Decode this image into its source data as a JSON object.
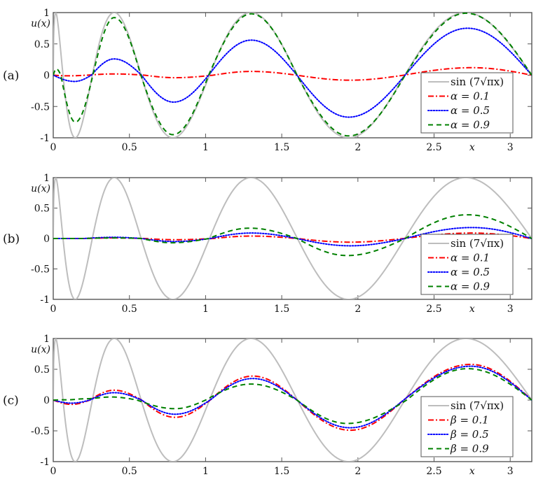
{
  "chart_data": [
    {
      "type": "line",
      "panel_label": "(a)",
      "xlabel": "x",
      "ylabel": "u(x)",
      "xlim": [
        0,
        3.1416
      ],
      "ylim": [
        -1,
        1
      ],
      "xticks": [
        "0",
        "0.5",
        "1",
        "1.5",
        "2",
        "2.5",
        "3"
      ],
      "yticks": [
        "-1",
        "-0.5",
        "0",
        "0.5",
        "1"
      ],
      "legend_position": "bottom-right",
      "reference": {
        "name": "sin (7√πx)",
        "expression": "sin(7*sqrt(pi*x))",
        "color": "#bdbdbd"
      },
      "series": [
        {
          "name": "α = 0.1",
          "color": "#ff0000",
          "style": "dashdot",
          "points": [
            [
              0,
              0
            ],
            [
              0.1,
              -0.01
            ],
            [
              0.22,
              0
            ],
            [
              0.4,
              0.02
            ],
            [
              0.6,
              0
            ],
            [
              0.8,
              -0.04
            ],
            [
              1.05,
              0
            ],
            [
              1.3,
              0.06
            ],
            [
              1.6,
              0
            ],
            [
              1.95,
              -0.08
            ],
            [
              2.3,
              0
            ],
            [
              2.75,
              0.12
            ],
            [
              3.1416,
              0
            ]
          ]
        },
        {
          "name": "α = 0.5",
          "color": "#0000ff",
          "style": "dotted",
          "points": [
            [
              0,
              0
            ],
            [
              0.14,
              -0.1
            ],
            [
              0.25,
              0
            ],
            [
              0.4,
              0.26
            ],
            [
              0.58,
              0
            ],
            [
              0.79,
              -0.43
            ],
            [
              1.02,
              0
            ],
            [
              1.3,
              0.56
            ],
            [
              1.6,
              0
            ],
            [
              1.94,
              -0.67
            ],
            [
              2.31,
              0
            ],
            [
              2.72,
              0.75
            ],
            [
              3.1416,
              0
            ]
          ]
        },
        {
          "name": "α = 0.9",
          "color": "#008000",
          "style": "dashed",
          "points": [
            [
              0,
              0
            ],
            [
              0.02,
              0.1
            ],
            [
              0.05,
              0
            ],
            [
              0.145,
              -0.75
            ],
            [
              0.26,
              0
            ],
            [
              0.4,
              0.92
            ],
            [
              0.575,
              0
            ],
            [
              0.785,
              -0.95
            ],
            [
              1.02,
              0
            ],
            [
              1.3,
              0.98
            ],
            [
              1.6,
              0
            ],
            [
              1.94,
              -0.97
            ],
            [
              2.31,
              0
            ],
            [
              2.71,
              0.99
            ],
            [
              3.1416,
              0
            ]
          ]
        }
      ]
    },
    {
      "type": "line",
      "panel_label": "(b)",
      "xlabel": "x",
      "ylabel": "u(x)",
      "xlim": [
        0,
        3.1416
      ],
      "ylim": [
        -1,
        1
      ],
      "xticks": [
        "0",
        "0.5",
        "1",
        "1.5",
        "2",
        "2.5",
        "3"
      ],
      "yticks": [
        "-1",
        "-0.5",
        "0",
        "0.5",
        "1"
      ],
      "legend_position": "bottom-right",
      "reference": {
        "name": "sin (7√πx)",
        "expression": "sin(7*sqrt(pi*x))",
        "color": "#bdbdbd"
      },
      "series": [
        {
          "name": "α = 0.1",
          "color": "#ff0000",
          "style": "dashdot",
          "points": [
            [
              0,
              0
            ],
            [
              0.2,
              0
            ],
            [
              0.4,
              0.01
            ],
            [
              0.6,
              0
            ],
            [
              0.8,
              -0.02
            ],
            [
              1.05,
              0
            ],
            [
              1.3,
              0.04
            ],
            [
              1.6,
              0
            ],
            [
              1.95,
              -0.06
            ],
            [
              2.3,
              0
            ],
            [
              2.75,
              0.09
            ],
            [
              3.1416,
              0
            ]
          ]
        },
        {
          "name": "α = 0.5",
          "color": "#0000ff",
          "style": "dotted",
          "points": [
            [
              0,
              0
            ],
            [
              0.2,
              0
            ],
            [
              0.4,
              0.02
            ],
            [
              0.58,
              0
            ],
            [
              0.8,
              -0.05
            ],
            [
              1.03,
              0
            ],
            [
              1.3,
              0.09
            ],
            [
              1.6,
              0
            ],
            [
              1.95,
              -0.12
            ],
            [
              2.31,
              0
            ],
            [
              2.75,
              0.18
            ],
            [
              3.1416,
              0
            ]
          ]
        },
        {
          "name": "α = 0.9",
          "color": "#008000",
          "style": "dashed",
          "points": [
            [
              0,
              0
            ],
            [
              0.2,
              0
            ],
            [
              0.4,
              0.01
            ],
            [
              0.58,
              0
            ],
            [
              0.78,
              -0.07
            ],
            [
              1.02,
              0
            ],
            [
              1.29,
              0.17
            ],
            [
              1.6,
              0
            ],
            [
              1.93,
              -0.28
            ],
            [
              2.31,
              0
            ],
            [
              2.72,
              0.39
            ],
            [
              3.1416,
              0
            ]
          ]
        }
      ]
    },
    {
      "type": "line",
      "panel_label": "(c)",
      "xlabel": "x",
      "ylabel": "u(x)",
      "xlim": [
        0,
        3.1416
      ],
      "ylim": [
        -1,
        1
      ],
      "xticks": [
        "0",
        "0.5",
        "1",
        "1.5",
        "2",
        "2.5",
        "3"
      ],
      "yticks": [
        "-1",
        "-0.5",
        "0",
        "0.5",
        "1"
      ],
      "legend_position": "bottom-right",
      "reference": {
        "name": "sin (7√πx)",
        "expression": "sin(7*sqrt(pi*x))",
        "color": "#bdbdbd"
      },
      "series": [
        {
          "name": "β = 0.1",
          "color": "#ff0000",
          "style": "dashdot",
          "points": [
            [
              0,
              0
            ],
            [
              0.12,
              -0.07
            ],
            [
              0.24,
              0
            ],
            [
              0.4,
              0.16
            ],
            [
              0.58,
              0
            ],
            [
              0.8,
              -0.28
            ],
            [
              1.03,
              0
            ],
            [
              1.31,
              0.39
            ],
            [
              1.6,
              0
            ],
            [
              1.95,
              -0.49
            ],
            [
              2.3,
              0
            ],
            [
              2.74,
              0.58
            ],
            [
              3.1416,
              0
            ]
          ]
        },
        {
          "name": "β = 0.5",
          "color": "#0000ff",
          "style": "dotted",
          "points": [
            [
              0,
              0
            ],
            [
              0.12,
              -0.05
            ],
            [
              0.24,
              0
            ],
            [
              0.4,
              0.12
            ],
            [
              0.58,
              0
            ],
            [
              0.8,
              -0.23
            ],
            [
              1.03,
              0
            ],
            [
              1.31,
              0.35
            ],
            [
              1.6,
              0
            ],
            [
              1.95,
              -0.45
            ],
            [
              2.3,
              0
            ],
            [
              2.74,
              0.55
            ],
            [
              3.1416,
              0
            ]
          ]
        },
        {
          "name": "β = 0.9",
          "color": "#008000",
          "style": "dashed",
          "points": [
            [
              0,
              0
            ],
            [
              0.1,
              0.005
            ],
            [
              0.2,
              0.02
            ],
            [
              0.38,
              0.05
            ],
            [
              0.55,
              0
            ],
            [
              0.8,
              -0.14
            ],
            [
              1.0,
              0
            ],
            [
              1.3,
              0.26
            ],
            [
              1.6,
              0
            ],
            [
              1.93,
              -0.38
            ],
            [
              2.32,
              0
            ],
            [
              2.72,
              0.51
            ],
            [
              3.1416,
              0
            ]
          ]
        }
      ]
    }
  ]
}
